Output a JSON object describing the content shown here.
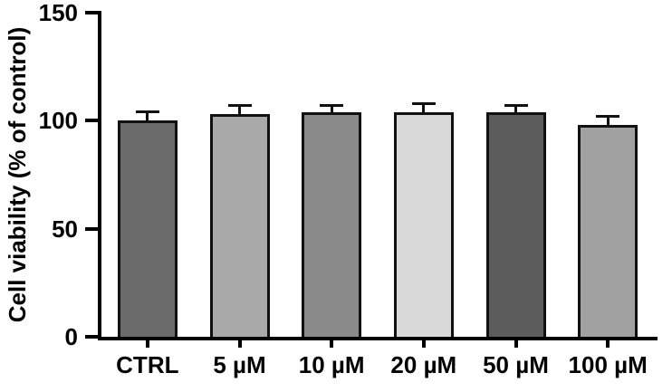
{
  "chart_data": {
    "type": "bar",
    "title": "",
    "ylabel": "Cell viability (% of control)",
    "xlabel": "",
    "categories": [
      "CTRL",
      "5 µM",
      "10 µM",
      "20 µM",
      "50 µM",
      "100 µM"
    ],
    "values": [
      100,
      103,
      104,
      104,
      104,
      98
    ],
    "errors": [
      4,
      4,
      3,
      4,
      3,
      4
    ],
    "bar_colors": [
      "#6b6b6b",
      "#a9a9a9",
      "#8a8a8a",
      "#d9d9d9",
      "#5c5c5c",
      "#a1a1a1"
    ],
    "bar_border_color": "#111111",
    "axis_color": "#000000",
    "ylim": [
      0,
      150
    ],
    "yticks": [
      0,
      50,
      100,
      150
    ],
    "grid": false,
    "legend_position": "none"
  }
}
